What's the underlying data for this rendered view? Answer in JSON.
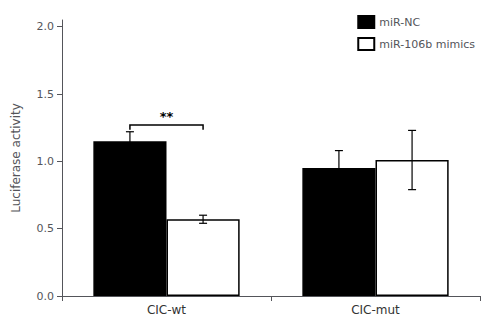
{
  "chart_data": {
    "type": "bar",
    "categories": [
      "CIC-wt",
      "CIC-mut"
    ],
    "series": [
      {
        "name": "miR-NC",
        "color": "#000000",
        "values": [
          1.15,
          0.95
        ],
        "errors": [
          0.07,
          0.13
        ]
      },
      {
        "name": "miR-106b mimics",
        "color": "#ffffff",
        "values": [
          0.57,
          1.01
        ],
        "errors": [
          0.03,
          0.22
        ]
      }
    ],
    "ylabel": "Luciferase activity",
    "ylim": [
      0.0,
      2.05
    ],
    "yticks": [
      {
        "value": 0,
        "label": "0.0"
      },
      0.5,
      {
        "value": 1,
        "label": "1.0"
      },
      1.5,
      {
        "value": 2,
        "label": "2.0"
      }
    ],
    "annotations": [
      {
        "text": "**",
        "group": "CIC-wt",
        "y": 1.27,
        "bracket_drop": 0.035
      }
    ],
    "legend": "upper right",
    "grid": false
  }
}
